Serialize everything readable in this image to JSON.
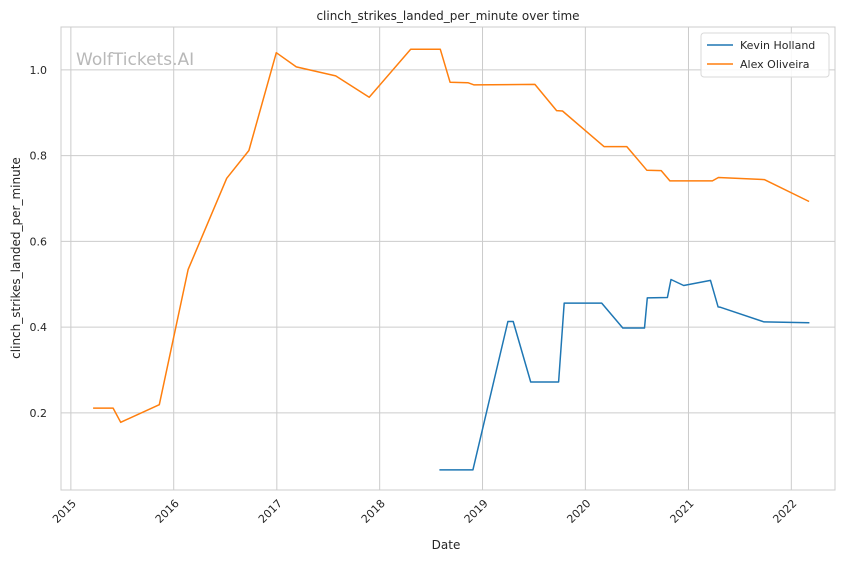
{
  "chart_data": {
    "type": "line",
    "title": "clinch_strikes_landed_per_minute over time",
    "xlabel": "Date",
    "ylabel": "clinch_strikes_landed_per_minute",
    "watermark": "WolfTickets.AI",
    "xlim": [
      "2014-11-27",
      "2022-06-05"
    ],
    "ylim": [
      0.02,
      1.1
    ],
    "x_ticks": [
      "2015",
      "2016",
      "2017",
      "2018",
      "2019",
      "2020",
      "2021",
      "2022"
    ],
    "y_ticks": [
      "0.2",
      "0.4",
      "0.6",
      "0.8",
      "1.0"
    ],
    "y_tick_values": [
      0.2,
      0.4,
      0.6,
      0.8,
      1.0
    ],
    "grid": true,
    "legend_position": "top-right",
    "series": [
      {
        "name": "Kevin Holland",
        "color": "#1f77b4",
        "points": [
          [
            "2018-08-01",
            0.067
          ],
          [
            "2018-11-28",
            0.067
          ],
          [
            "2019-04-01",
            0.413
          ],
          [
            "2019-04-20",
            0.413
          ],
          [
            "2019-06-21",
            0.272
          ],
          [
            "2019-09-28",
            0.272
          ],
          [
            "2019-10-18",
            0.456
          ],
          [
            "2020-02-28",
            0.456
          ],
          [
            "2020-05-13",
            0.398
          ],
          [
            "2020-07-29",
            0.398
          ],
          [
            "2020-08-08",
            0.468
          ],
          [
            "2020-10-18",
            0.469
          ],
          [
            "2020-10-31",
            0.511
          ],
          [
            "2020-12-15",
            0.497
          ],
          [
            "2021-03-20",
            0.509
          ],
          [
            "2021-04-16",
            0.447
          ],
          [
            "2021-04-26",
            0.446
          ],
          [
            "2021-09-26",
            0.412
          ],
          [
            "2022-03-06",
            0.41
          ]
        ]
      },
      {
        "name": "Alex Oliveira",
        "color": "#ff7f0e",
        "points": [
          [
            "2015-03-21",
            0.211
          ],
          [
            "2015-05-31",
            0.211
          ],
          [
            "2015-06-27",
            0.178
          ],
          [
            "2015-11-11",
            0.219
          ],
          [
            "2016-02-21",
            0.534
          ],
          [
            "2016-07-07",
            0.747
          ],
          [
            "2016-09-24",
            0.812
          ],
          [
            "2016-12-30",
            1.04
          ],
          [
            "2017-03-11",
            1.007
          ],
          [
            "2017-07-29",
            0.986
          ],
          [
            "2017-11-25",
            0.936
          ],
          [
            "2018-04-21",
            1.048
          ],
          [
            "2018-08-04",
            1.048
          ],
          [
            "2018-09-08",
            0.971
          ],
          [
            "2018-11-10",
            0.97
          ],
          [
            "2018-12-02",
            0.965
          ],
          [
            "2019-07-06",
            0.966
          ],
          [
            "2019-09-21",
            0.905
          ],
          [
            "2019-10-12",
            0.904
          ],
          [
            "2020-03-07",
            0.821
          ],
          [
            "2020-05-27",
            0.821
          ],
          [
            "2020-08-06",
            0.766
          ],
          [
            "2020-09-26",
            0.765
          ],
          [
            "2020-10-27",
            0.741
          ],
          [
            "2021-03-27",
            0.741
          ],
          [
            "2021-04-17",
            0.749
          ],
          [
            "2021-09-27",
            0.744
          ],
          [
            "2022-03-05",
            0.693
          ]
        ]
      }
    ]
  }
}
